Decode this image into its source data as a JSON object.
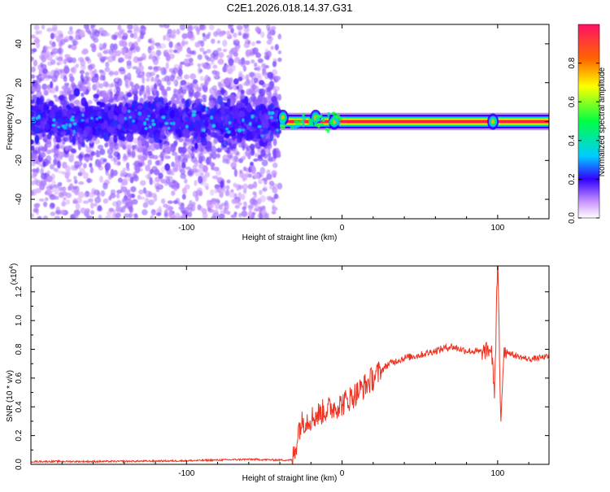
{
  "title": "C2E1.2026.018.14.37.G31",
  "chart_data": [
    {
      "type": "heatmap",
      "xlabel": "Height of straight line (km)",
      "ylabel": "Frequency (Hz)",
      "xlim": [
        -200,
        133
      ],
      "ylim": [
        -50,
        50
      ],
      "xticks": [
        -100,
        0,
        100
      ],
      "yticks": [
        -40,
        -20,
        0,
        20,
        40
      ],
      "colorbar": {
        "label": "Normalized spectral amplitude",
        "range": [
          0,
          1
        ],
        "ticks": [
          0.0,
          0.2,
          0.4,
          0.6,
          0.8
        ],
        "tick_labels": [
          "0.0",
          "0.2",
          "0.4",
          "0.6",
          "0.8"
        ]
      },
      "regions": [
        {
          "x_range": [
            -200,
            -40
          ],
          "description_level": "noise",
          "frequency_spread_hz": 50,
          "core_band_hz": [
            -8,
            8
          ],
          "amplitude": [
            0.05,
            0.25
          ]
        },
        {
          "x_range": [
            -40,
            133
          ],
          "description_level": "signal",
          "center_frequency_hz": 0,
          "band_halfwidth_hz": 2,
          "amplitude": [
            0.85,
            1.0
          ]
        }
      ],
      "features": [
        {
          "x": -38,
          "freq_hz": 2
        },
        {
          "x": -17,
          "freq_hz": 2
        },
        {
          "x": -5,
          "freq_hz": 0
        },
        {
          "x": 97,
          "freq_hz": 0
        }
      ]
    },
    {
      "type": "line",
      "xlabel": "Height of straight line (km)",
      "ylabel": "SNR (10 * v/v)",
      "y_multiplier_label": "(x10",
      "y_multiplier_exp": "4",
      "y_multiplier_close": ")",
      "xlim": [
        -200,
        133
      ],
      "ylim": [
        0,
        1.38
      ],
      "xticks": [
        -100,
        0,
        100
      ],
      "yticks": [
        0.0,
        0.2,
        0.4,
        0.6,
        0.8,
        1.0,
        1.2
      ],
      "ytick_labels": [
        "0.0",
        "0.2",
        "0.4",
        "0.6",
        "0.8",
        "1.0",
        "1.2"
      ],
      "color": "#ee3322",
      "series": [
        {
          "x": [
            -200,
            -150,
            -100,
            -60,
            -40,
            -32,
            -30,
            -28,
            -25,
            -20,
            -15,
            -10,
            -5,
            0,
            10,
            20,
            30,
            40,
            50,
            60,
            70,
            80,
            90,
            96,
            98,
            100,
            102,
            104,
            110,
            120,
            133
          ],
          "y": [
            0.02,
            0.02,
            0.025,
            0.035,
            0.03,
            0.03,
            0.1,
            0.25,
            0.3,
            0.32,
            0.35,
            0.38,
            0.4,
            0.42,
            0.5,
            0.6,
            0.7,
            0.74,
            0.76,
            0.79,
            0.82,
            0.79,
            0.78,
            0.8,
            0.5,
            1.35,
            0.3,
            0.8,
            0.76,
            0.73,
            0.75
          ]
        }
      ]
    }
  ]
}
